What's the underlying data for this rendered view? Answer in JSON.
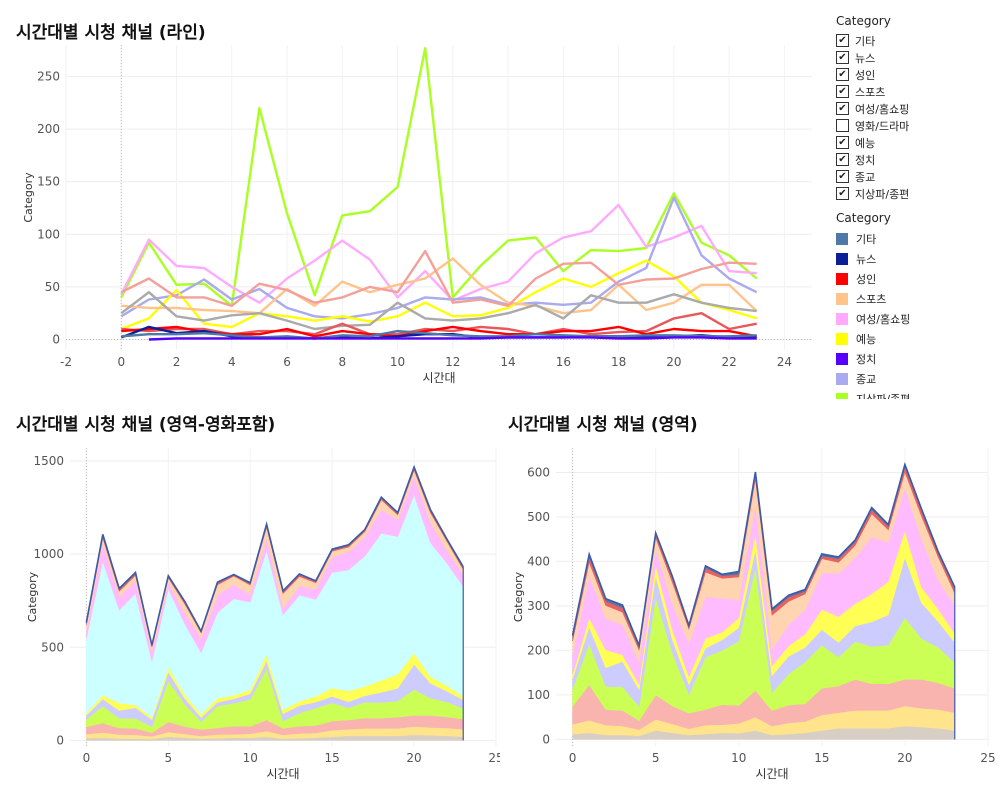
{
  "dashboard": {
    "line_title": "시간대별 시청 채널 (라인)",
    "area1_title": "시간대별 시청 채널 (영역-영화포함)",
    "area2_title": "시간대별 시청 채널 (영역)"
  },
  "filter_legend": {
    "title": "Category",
    "items": [
      {
        "label": "기타",
        "checked": true
      },
      {
        "label": "뉴스",
        "checked": true
      },
      {
        "label": "성인",
        "checked": true
      },
      {
        "label": "스포츠",
        "checked": true
      },
      {
        "label": "여성/홈쇼핑",
        "checked": true
      },
      {
        "label": "영화/드라마",
        "checked": false
      },
      {
        "label": "예능",
        "checked": true
      },
      {
        "label": "정치",
        "checked": true
      },
      {
        "label": "종교",
        "checked": true
      },
      {
        "label": "지상파/종편",
        "checked": true
      }
    ]
  },
  "color_legend": {
    "title": "Category",
    "items": [
      {
        "label": "기타",
        "color": "#4e79a7"
      },
      {
        "label": "뉴스",
        "color": "#0b1f99"
      },
      {
        "label": "성인",
        "color": "#ff0000"
      },
      {
        "label": "스포츠",
        "color": "#ffc48c"
      },
      {
        "label": "여성/홈쇼핑",
        "color": "#ffaaff"
      },
      {
        "label": "예능",
        "color": "#ffff00"
      },
      {
        "label": "정치",
        "color": "#5500ff"
      },
      {
        "label": "종교",
        "color": "#aaaaee"
      },
      {
        "label": "지상파/종편",
        "color": "#aaff22"
      }
    ]
  },
  "chart_data": [
    {
      "type": "line",
      "title": "시간대별 시청 채널 (라인)",
      "xlabel": "시간대",
      "ylabel": "Category",
      "xlim": [
        -2,
        25
      ],
      "ylim": [
        -10,
        280
      ],
      "xticks": [
        -2,
        0,
        2,
        4,
        6,
        8,
        10,
        12,
        14,
        16,
        18,
        20,
        22,
        24
      ],
      "yticks": [
        0,
        50,
        100,
        150,
        200,
        250
      ],
      "x": [
        0,
        1,
        2,
        3,
        4,
        5,
        6,
        7,
        8,
        9,
        10,
        11,
        12,
        13,
        14,
        15,
        16,
        17,
        18,
        19,
        20,
        21,
        22,
        23
      ],
      "series": [
        {
          "color": "#aaff22",
          "values": [
            40,
            92,
            52,
            53,
            32,
            220,
            120,
            42,
            118,
            122,
            145,
            277,
            40,
            70,
            94,
            97,
            65,
            85,
            84,
            87,
            139,
            92,
            80,
            58
          ]
        },
        {
          "color": "#ffaaff",
          "values": [
            43,
            95,
            70,
            68,
            50,
            35,
            58,
            75,
            94,
            76,
            40,
            65,
            37,
            48,
            55,
            82,
            97,
            103,
            128,
            88,
            97,
            108,
            65,
            63
          ]
        },
        {
          "color": "#aaaaee",
          "values": [
            22,
            38,
            42,
            57,
            38,
            48,
            30,
            22,
            20,
            24,
            30,
            40,
            38,
            40,
            33,
            35,
            33,
            35,
            55,
            68,
            135,
            80,
            58,
            45
          ]
        },
        {
          "color": "#ffff00",
          "values": [
            10,
            20,
            47,
            15,
            12,
            25,
            22,
            18,
            22,
            17,
            22,
            35,
            22,
            23,
            30,
            45,
            58,
            50,
            63,
            75,
            60,
            35,
            28,
            20
          ]
        },
        {
          "color": "#ffc48c",
          "values": [
            32,
            30,
            30,
            28,
            27,
            25,
            48,
            32,
            55,
            45,
            52,
            58,
            77,
            52,
            35,
            32,
            25,
            28,
            52,
            28,
            35,
            52,
            52,
            27
          ]
        },
        {
          "color": "#f4a09a",
          "values": [
            45,
            58,
            40,
            40,
            32,
            53,
            47,
            35,
            40,
            50,
            45,
            84,
            35,
            38,
            32,
            58,
            72,
            73,
            52,
            57,
            58,
            67,
            73,
            72
          ]
        },
        {
          "color": "#aaaaaa",
          "values": [
            25,
            45,
            22,
            18,
            23,
            25,
            18,
            10,
            13,
            14,
            35,
            20,
            18,
            20,
            25,
            33,
            20,
            42,
            35,
            35,
            43,
            35,
            30,
            27
          ]
        },
        {
          "color": "#e8575a",
          "values": [
            10,
            8,
            10,
            10,
            5,
            8,
            8,
            5,
            15,
            5,
            5,
            10,
            8,
            12,
            10,
            5,
            10,
            5,
            7,
            8,
            20,
            25,
            10,
            15
          ]
        },
        {
          "color": "#ff0000",
          "values": [
            8,
            10,
            12,
            7,
            5,
            5,
            10,
            3,
            8,
            5,
            3,
            8,
            12,
            8,
            5,
            5,
            8,
            8,
            12,
            5,
            10,
            8,
            8,
            3
          ]
        },
        {
          "color": "#0b1f99",
          "values": [
            2,
            12,
            6,
            8,
            3,
            2,
            2,
            1,
            2,
            1,
            3,
            5,
            5,
            2,
            2,
            2,
            2,
            3,
            3,
            3,
            3,
            4,
            2,
            2
          ]
        },
        {
          "color": "#4e79a7",
          "values": [
            3,
            5,
            5,
            6,
            4,
            2,
            3,
            1,
            4,
            3,
            8,
            6,
            4,
            3,
            3,
            5,
            4,
            3,
            3,
            4,
            4,
            3,
            3,
            4
          ]
        },
        {
          "color": "#5500ff",
          "values": [
            null,
            0,
            1,
            1,
            1,
            1,
            1,
            1,
            1,
            1,
            1,
            1,
            1,
            1,
            2,
            2,
            2,
            2,
            1,
            1,
            2,
            2,
            1,
            1
          ]
        }
      ]
    },
    {
      "type": "area",
      "title": "시간대별 시청 채널 (영역-영화포함)",
      "xlabel": "시간대",
      "ylabel": "Category",
      "xlim": [
        -1,
        25
      ],
      "ylim": [
        -30,
        1570
      ],
      "xticks": [
        0,
        5,
        10,
        15,
        20,
        25
      ],
      "yticks": [
        0,
        500,
        1000,
        1500
      ],
      "x": [
        0,
        1,
        2,
        3,
        4,
        5,
        6,
        7,
        8,
        9,
        10,
        11,
        12,
        13,
        14,
        15,
        16,
        17,
        18,
        19,
        20,
        21,
        22,
        23
      ],
      "stack_order": "bottom-up",
      "series": [
        {
          "color": "#d8cfc4",
          "values": [
            12,
            15,
            10,
            10,
            8,
            20,
            15,
            10,
            12,
            15,
            14,
            20,
            10,
            12,
            15,
            20,
            25,
            25,
            25,
            25,
            30,
            28,
            25,
            20
          ]
        },
        {
          "color": "#ffe48c",
          "values": [
            22,
            28,
            22,
            20,
            14,
            25,
            20,
            14,
            20,
            18,
            22,
            30,
            20,
            25,
            25,
            35,
            35,
            40,
            40,
            40,
            45,
            42,
            42,
            40
          ]
        },
        {
          "color": "#f9b4b0",
          "values": [
            40,
            50,
            35,
            35,
            20,
            55,
            40,
            35,
            35,
            45,
            40,
            60,
            35,
            40,
            40,
            50,
            50,
            55,
            55,
            60,
            60,
            65,
            60,
            55
          ]
        },
        {
          "color": "#ccff55",
          "values": [
            40,
            92,
            52,
            53,
            32,
            220,
            120,
            42,
            118,
            122,
            145,
            277,
            40,
            70,
            94,
            97,
            65,
            85,
            84,
            87,
            139,
            92,
            80,
            58
          ]
        },
        {
          "color": "#ccccff",
          "values": [
            22,
            38,
            42,
            57,
            38,
            48,
            30,
            22,
            20,
            24,
            30,
            40,
            38,
            40,
            33,
            35,
            33,
            35,
            55,
            68,
            135,
            80,
            58,
            45
          ]
        },
        {
          "color": "#ffff55",
          "values": [
            10,
            20,
            40,
            15,
            12,
            25,
            22,
            18,
            22,
            17,
            22,
            35,
            22,
            23,
            30,
            45,
            58,
            50,
            63,
            75,
            60,
            35,
            28,
            20
          ]
        },
        {
          "color": "#ccffff",
          "values": [
            400,
            720,
            500,
            600,
            300,
            420,
            380,
            330,
            460,
            520,
            470,
            560,
            510,
            570,
            520,
            620,
            650,
            700,
            790,
            740,
            850,
            720,
            660,
            590
          ]
        },
        {
          "color": "#ffbbff",
          "values": [
            43,
            95,
            70,
            68,
            50,
            35,
            58,
            75,
            94,
            76,
            40,
            65,
            37,
            48,
            55,
            82,
            97,
            103,
            128,
            88,
            97,
            108,
            65,
            63
          ]
        },
        {
          "color": "#ffd4b0",
          "values": [
            32,
            30,
            30,
            28,
            27,
            25,
            48,
            32,
            55,
            45,
            52,
            58,
            77,
            52,
            35,
            32,
            25,
            28,
            52,
            28,
            35,
            52,
            52,
            27
          ]
        },
        {
          "color": "#e86060",
          "values": [
            8,
            12,
            10,
            10,
            6,
            8,
            10,
            6,
            10,
            6,
            6,
            10,
            10,
            10,
            6,
            6,
            8,
            8,
            10,
            8,
            12,
            12,
            8,
            10
          ]
        },
        {
          "color": "#4e79a7",
          "values": [
            5,
            6,
            5,
            6,
            4,
            3,
            4,
            2,
            4,
            3,
            6,
            6,
            4,
            4,
            4,
            5,
            4,
            4,
            4,
            4,
            5,
            4,
            4,
            4
          ]
        }
      ]
    },
    {
      "type": "area",
      "title": "시간대별 시청 채널 (영역)",
      "xlabel": "시간대",
      "ylabel": "Category",
      "xlim": [
        -1,
        25
      ],
      "ylim": [
        -15,
        655
      ],
      "xticks": [
        0,
        5,
        10,
        15,
        20,
        25
      ],
      "yticks": [
        0,
        100,
        200,
        300,
        400,
        500,
        600
      ],
      "x": [
        0,
        1,
        2,
        3,
        4,
        5,
        6,
        7,
        8,
        9,
        10,
        11,
        12,
        13,
        14,
        15,
        16,
        17,
        18,
        19,
        20,
        21,
        22,
        23
      ],
      "stack_order": "bottom-up",
      "series": [
        {
          "color": "#d8cfc4",
          "values": [
            12,
            15,
            10,
            10,
            8,
            20,
            15,
            10,
            12,
            15,
            14,
            20,
            10,
            12,
            15,
            20,
            25,
            25,
            25,
            25,
            30,
            28,
            25,
            20
          ]
        },
        {
          "color": "#ffe48c",
          "values": [
            22,
            28,
            22,
            20,
            14,
            25,
            20,
            14,
            20,
            18,
            22,
            30,
            20,
            25,
            25,
            35,
            35,
            40,
            40,
            40,
            45,
            42,
            42,
            40
          ]
        },
        {
          "color": "#f9b4b0",
          "values": [
            40,
            80,
            35,
            35,
            20,
            55,
            40,
            35,
            35,
            45,
            40,
            60,
            35,
            40,
            40,
            60,
            60,
            70,
            60,
            60,
            60,
            65,
            60,
            55
          ]
        },
        {
          "color": "#ccff55",
          "values": [
            40,
            92,
            52,
            53,
            32,
            220,
            120,
            42,
            118,
            122,
            145,
            277,
            40,
            70,
            94,
            97,
            65,
            85,
            84,
            87,
            139,
            92,
            80,
            58
          ]
        },
        {
          "color": "#ccccff",
          "values": [
            22,
            38,
            42,
            57,
            38,
            48,
            30,
            22,
            20,
            24,
            30,
            40,
            38,
            40,
            33,
            35,
            33,
            35,
            55,
            68,
            135,
            80,
            58,
            45
          ]
        },
        {
          "color": "#ffff55",
          "values": [
            10,
            20,
            40,
            15,
            12,
            25,
            22,
            18,
            22,
            17,
            22,
            35,
            22,
            23,
            30,
            45,
            58,
            50,
            63,
            75,
            60,
            35,
            28,
            20
          ]
        },
        {
          "color": "#ffbbff",
          "values": [
            43,
            95,
            70,
            68,
            50,
            35,
            58,
            75,
            94,
            76,
            40,
            65,
            37,
            48,
            55,
            82,
            97,
            103,
            128,
            88,
            97,
            108,
            65,
            63
          ]
        },
        {
          "color": "#ffd4b0",
          "values": [
            32,
            30,
            30,
            28,
            27,
            25,
            48,
            32,
            55,
            45,
            52,
            58,
            77,
            52,
            35,
            32,
            25,
            28,
            52,
            28,
            35,
            52,
            52,
            27
          ]
        },
        {
          "color": "#e86060",
          "values": [
            8,
            12,
            10,
            10,
            6,
            8,
            10,
            6,
            10,
            6,
            6,
            10,
            10,
            10,
            6,
            6,
            8,
            8,
            10,
            8,
            12,
            12,
            8,
            10
          ]
        },
        {
          "color": "#4e79a7",
          "values": [
            5,
            6,
            5,
            6,
            4,
            3,
            4,
            2,
            4,
            3,
            6,
            6,
            4,
            4,
            4,
            5,
            4,
            4,
            4,
            4,
            5,
            4,
            4,
            4
          ]
        }
      ]
    }
  ]
}
